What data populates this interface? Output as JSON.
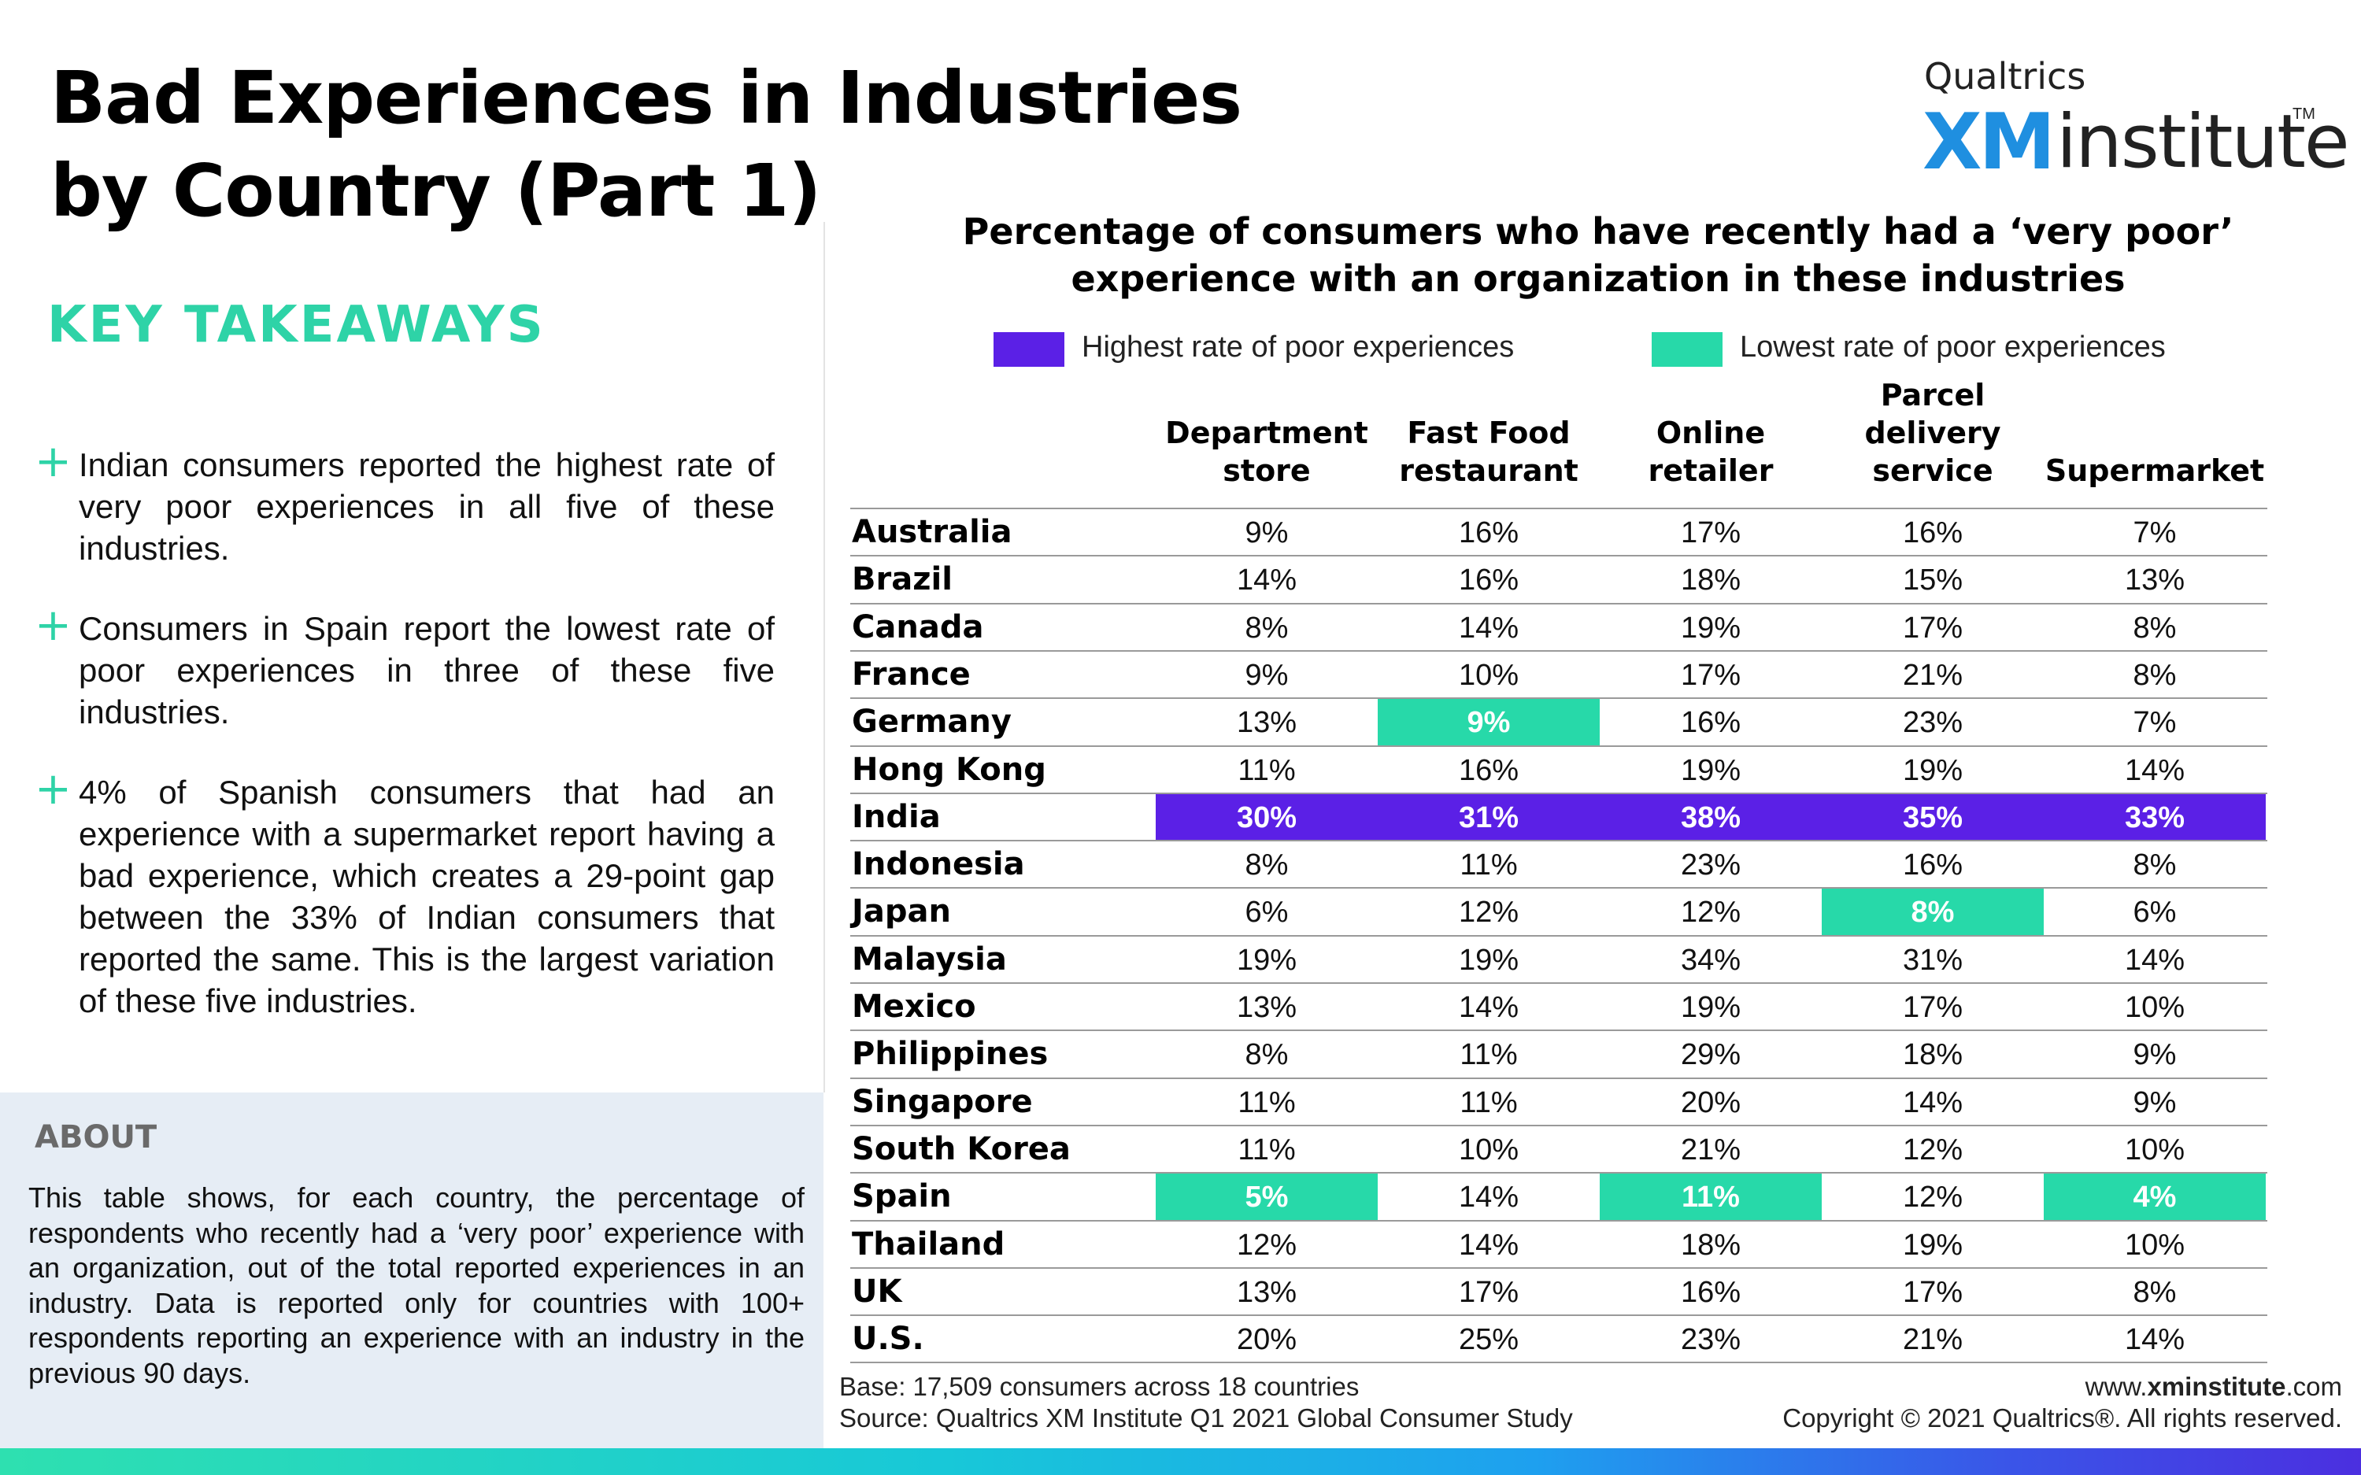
{
  "page": {
    "title_line1": "Bad Experiences in Industries",
    "title_line2": "by Country (Part 1)"
  },
  "logo": {
    "top": "Qualtrics",
    "xm": "XM",
    "institute": "institute",
    "tm": "TM"
  },
  "takeaways": {
    "heading": "KEY TAKEAWAYS",
    "items": [
      "Indian consumers reported the highest rate of very poor experiences in all five of these industries.",
      "Consumers in Spain report the lowest rate of poor experiences in three of these five industries.",
      "4% of Spanish consumers that had an experience with a supermarket report having a bad experience, which creates a 29-point gap between the 33% of Indian consumers that reported the same. This is the largest variation of these five industries."
    ]
  },
  "about": {
    "heading": "ABOUT",
    "text": "This table shows, for each country, the percentage of respondents who recently had a ‘very poor’ experience with an organization, out of the total reported experiences in an industry. Data is reported only for countries with 100+ respondents reporting an experience with an industry in the previous 90 days."
  },
  "colors": {
    "highest": "#5b20e6",
    "lowest": "#27d9a9",
    "accent": "#2ed3a7"
  },
  "chart_data": {
    "type": "table",
    "title_line1": "Percentage of consumers who have recently had a ‘very poor’",
    "title_line2": "experience with an organization in these industries",
    "legend": {
      "highest": "Highest rate of poor experiences",
      "lowest": "Lowest rate of poor experiences"
    },
    "columns": [
      [
        "Department",
        "store"
      ],
      [
        "Fast Food",
        "restaurant"
      ],
      [
        "Online",
        "retailer"
      ],
      [
        "Parcel",
        "delivery",
        "service"
      ],
      [
        "Supermarket"
      ]
    ],
    "rows": [
      {
        "country": "Australia",
        "values": [
          "9%",
          "16%",
          "17%",
          "16%",
          "7%"
        ],
        "marks": [
          "",
          "",
          "",
          "",
          ""
        ]
      },
      {
        "country": "Brazil",
        "values": [
          "14%",
          "16%",
          "18%",
          "15%",
          "13%"
        ],
        "marks": [
          "",
          "",
          "",
          "",
          ""
        ]
      },
      {
        "country": "Canada",
        "values": [
          "8%",
          "14%",
          "19%",
          "17%",
          "8%"
        ],
        "marks": [
          "",
          "",
          "",
          "",
          ""
        ]
      },
      {
        "country": "France",
        "values": [
          "9%",
          "10%",
          "17%",
          "21%",
          "8%"
        ],
        "marks": [
          "",
          "",
          "",
          "",
          ""
        ]
      },
      {
        "country": "Germany",
        "values": [
          "13%",
          "9%",
          "16%",
          "23%",
          "7%"
        ],
        "marks": [
          "",
          "low",
          "",
          "",
          ""
        ]
      },
      {
        "country": "Hong Kong",
        "values": [
          "11%",
          "16%",
          "19%",
          "19%",
          "14%"
        ],
        "marks": [
          "",
          "",
          "",
          "",
          ""
        ]
      },
      {
        "country": "India",
        "values": [
          "30%",
          "31%",
          "38%",
          "35%",
          "33%"
        ],
        "marks": [
          "high",
          "high",
          "high",
          "high",
          "high"
        ]
      },
      {
        "country": "Indonesia",
        "values": [
          "8%",
          "11%",
          "23%",
          "16%",
          "8%"
        ],
        "marks": [
          "",
          "",
          "",
          "",
          ""
        ]
      },
      {
        "country": "Japan",
        "values": [
          "6%",
          "12%",
          "12%",
          "8%",
          "6%"
        ],
        "marks": [
          "",
          "",
          "",
          "low",
          ""
        ]
      },
      {
        "country": "Malaysia",
        "values": [
          "19%",
          "19%",
          "34%",
          "31%",
          "14%"
        ],
        "marks": [
          "",
          "",
          "",
          "",
          ""
        ]
      },
      {
        "country": "Mexico",
        "values": [
          "13%",
          "14%",
          "19%",
          "17%",
          "10%"
        ],
        "marks": [
          "",
          "",
          "",
          "",
          ""
        ]
      },
      {
        "country": "Philippines",
        "values": [
          "8%",
          "11%",
          "29%",
          "18%",
          "9%"
        ],
        "marks": [
          "",
          "",
          "",
          "",
          ""
        ]
      },
      {
        "country": "Singapore",
        "values": [
          "11%",
          "11%",
          "20%",
          "14%",
          "9%"
        ],
        "marks": [
          "",
          "",
          "",
          "",
          ""
        ]
      },
      {
        "country": "South Korea",
        "values": [
          "11%",
          "10%",
          "21%",
          "12%",
          "10%"
        ],
        "marks": [
          "",
          "",
          "",
          "",
          ""
        ]
      },
      {
        "country": "Spain",
        "values": [
          "5%",
          "14%",
          "11%",
          "12%",
          "4%"
        ],
        "marks": [
          "low",
          "",
          "low",
          "",
          "low"
        ]
      },
      {
        "country": "Thailand",
        "values": [
          "12%",
          "14%",
          "18%",
          "19%",
          "10%"
        ],
        "marks": [
          "",
          "",
          "",
          "",
          ""
        ]
      },
      {
        "country": "UK",
        "values": [
          "13%",
          "17%",
          "16%",
          "17%",
          "8%"
        ],
        "marks": [
          "",
          "",
          "",
          "",
          ""
        ]
      },
      {
        "country": "U.S.",
        "values": [
          "20%",
          "25%",
          "23%",
          "21%",
          "14%"
        ],
        "marks": [
          "",
          "",
          "",
          "",
          ""
        ]
      }
    ]
  },
  "footer": {
    "base": "Base: 17,509 consumers across 18 countries",
    "source": "Source: Qualtrics XM Institute Q1 2021 Global Consumer Study",
    "web_prefix": "www.",
    "web_bold": "xminstitute",
    "web_suffix": ".com",
    "copyright": "Copyright © 2021 Qualtrics®. All rights reserved."
  }
}
